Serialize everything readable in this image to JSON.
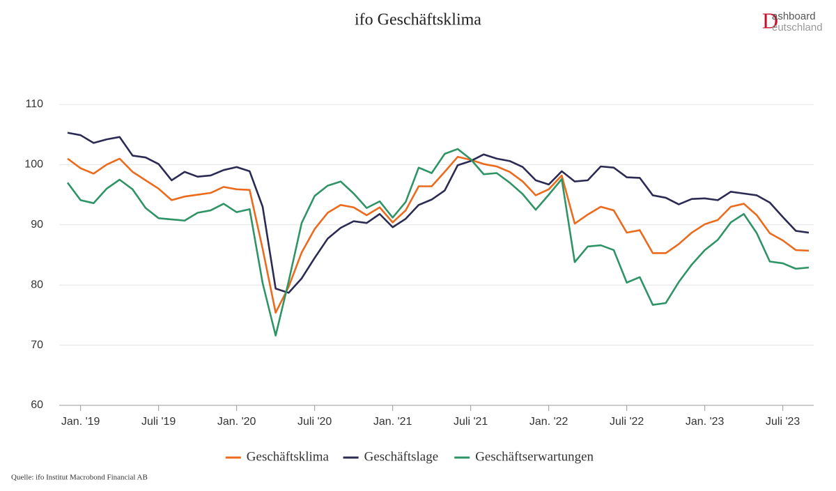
{
  "chart_data": {
    "type": "line",
    "title": "ifo Geschäftsklima",
    "logo": [
      "D",
      "ashboard",
      "eutschland"
    ],
    "source": "Quelle: ifo Institut Macrobond Financial AB",
    "categories": [
      null,
      "Jan. '19",
      null,
      null,
      null,
      null,
      null,
      "Juli '19",
      null,
      null,
      null,
      null,
      null,
      "Jan. '20",
      null,
      null,
      null,
      null,
      null,
      "Juli '20",
      null,
      null,
      null,
      null,
      null,
      "Jan. '21",
      null,
      null,
      null,
      null,
      null,
      "Juli '21",
      null,
      null,
      null,
      null,
      null,
      "Jan. '22",
      null,
      null,
      null,
      null,
      null,
      "Juli '22",
      null,
      null,
      null,
      null,
      null,
      "Jan. '23",
      null,
      null,
      null,
      null,
      null,
      "Juli '23",
      null,
      null
    ],
    "series": [
      {
        "name": "Geschäftsklima",
        "color": "#ec6a1c",
        "values": [
          101.0,
          99.4,
          98.5,
          100.0,
          101.0,
          98.8,
          97.4,
          96.0,
          94.1,
          94.7,
          95.0,
          95.3,
          96.3,
          95.9,
          95.8,
          86.0,
          75.4,
          79.7,
          85.4,
          89.3,
          92.0,
          93.3,
          92.9,
          91.6,
          92.9,
          90.4,
          92.4,
          96.4,
          96.4,
          98.8,
          101.3,
          100.8,
          100.1,
          99.7,
          98.8,
          97.2,
          94.9,
          95.9,
          98.2,
          90.2,
          91.7,
          93.0,
          92.4,
          88.7,
          89.1,
          85.3,
          85.3,
          86.8,
          88.7,
          90.1,
          90.8,
          93.0,
          93.5,
          91.6,
          88.6,
          87.4,
          85.8,
          85.7
        ]
      },
      {
        "name": "Geschäftslage",
        "color": "#2b2a52",
        "values": [
          105.3,
          104.9,
          103.6,
          104.2,
          104.6,
          101.5,
          101.2,
          100.1,
          97.4,
          98.8,
          98.0,
          98.2,
          99.1,
          99.6,
          98.9,
          93.0,
          79.4,
          78.7,
          81.1,
          84.5,
          87.7,
          89.5,
          90.6,
          90.3,
          91.8,
          89.6,
          91.0,
          93.3,
          94.2,
          95.7,
          99.9,
          100.6,
          101.7,
          101.0,
          100.6,
          99.6,
          97.4,
          96.7,
          98.9,
          97.2,
          97.4,
          99.7,
          99.5,
          97.9,
          97.8,
          94.9,
          94.5,
          93.4,
          94.3,
          94.4,
          94.1,
          95.5,
          95.2,
          94.9,
          93.7,
          91.3,
          89.0,
          88.7
        ]
      },
      {
        "name": "Geschäftserwartungen",
        "color": "#2e9466",
        "values": [
          97.0,
          94.1,
          93.6,
          96.0,
          97.5,
          95.9,
          92.8,
          91.1,
          90.9,
          90.7,
          92.0,
          92.4,
          93.5,
          92.1,
          92.6,
          80.3,
          71.6,
          80.6,
          90.3,
          94.8,
          96.5,
          97.2,
          95.2,
          92.8,
          93.9,
          91.2,
          93.8,
          99.5,
          98.6,
          101.8,
          102.6,
          100.9,
          98.4,
          98.6,
          97.0,
          95.1,
          92.5,
          95.0,
          97.6,
          83.8,
          86.4,
          86.6,
          85.8,
          80.4,
          81.3,
          76.7,
          77.0,
          80.5,
          83.4,
          85.8,
          87.5,
          90.4,
          91.8,
          88.6,
          83.9,
          83.6,
          82.7,
          82.9
        ]
      }
    ],
    "ylim": [
      60,
      110
    ],
    "yticks": [
      60,
      70,
      80,
      90,
      100,
      110
    ],
    "grid": true
  }
}
